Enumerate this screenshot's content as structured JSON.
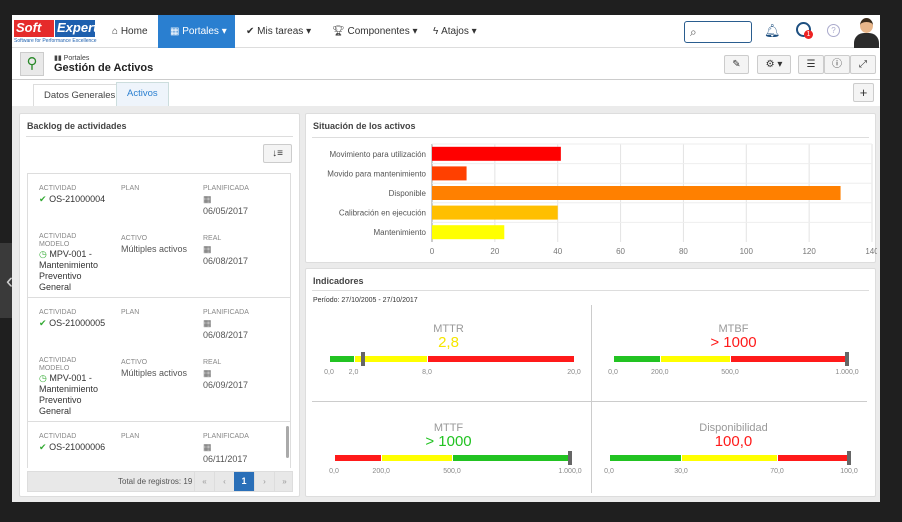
{
  "nav": {
    "logo_soft": "Soft",
    "logo_expert": "Expert",
    "logo_tagline": "Software for Performance Excellence",
    "items": [
      {
        "label": "Home",
        "icon": "home-icon"
      },
      {
        "label": "Portales",
        "icon": "grid-icon",
        "active": true
      },
      {
        "label": "Mis tareas",
        "icon": "check-icon"
      },
      {
        "label": "Componentes",
        "icon": "trophy-icon"
      },
      {
        "label": "Atajos",
        "icon": "bolt-icon"
      }
    ],
    "notification_badge": "1"
  },
  "header": {
    "breadcrumb": "Portales",
    "title": "Gestión de Activos"
  },
  "tabs": [
    {
      "label": "Datos Generales"
    },
    {
      "label": "Activos",
      "active": true
    }
  ],
  "backlog": {
    "title": "Backlog de actividades",
    "labels": {
      "actividad": "Actividad",
      "plan": "Plan",
      "planificada": "Planificada",
      "actividad_modelo": "Actividad modelo",
      "activo": "Activo",
      "real": "Real"
    },
    "items": [
      {
        "actividad": "OS-21000004",
        "planificada": "06/05/2017",
        "modelo": "MPV-001 - Mantenimiento Preventivo General",
        "activo": "Múltiples activos",
        "real": "06/08/2017"
      },
      {
        "actividad": "OS-21000005",
        "planificada": "06/08/2017",
        "modelo": "MPV-001 - Mantenimiento Preventivo General",
        "activo": "Múltiples activos",
        "real": "06/09/2017"
      },
      {
        "actividad": "OS-21000006",
        "planificada": "06/11/2017"
      }
    ],
    "total": "Total de registros: 19",
    "page": "1",
    "first": "«",
    "prev": "‹",
    "next": "›",
    "last": "»"
  },
  "chart_data": {
    "type": "bar",
    "orientation": "horizontal",
    "title": "Situación de los activos",
    "categories": [
      "Movimiento para utilización",
      "Movido para mantenimiento",
      "Disponible",
      "Calibración en ejecución",
      "Mantenimiento"
    ],
    "values": [
      41,
      11,
      130,
      40,
      23
    ],
    "colors": [
      "#ff0000",
      "#ff4000",
      "#ff8000",
      "#ffbf00",
      "#ffff00"
    ],
    "xlim": [
      0,
      140
    ],
    "xticks": [
      0,
      20,
      40,
      60,
      80,
      100,
      120,
      140
    ],
    "grid": true
  },
  "indicadores": {
    "title": "Indicadores",
    "periodo": "Período: 27/10/2005 - 27/10/2017",
    "gauges": [
      {
        "name": "MTTR",
        "value_text": "2,8",
        "value": 2.8,
        "value_color": "#f5e600",
        "max": 20,
        "segments": [
          {
            "to": 2,
            "color": "#22c322"
          },
          {
            "to": 8,
            "color": "#ffff00"
          },
          {
            "to": 20,
            "color": "#ff1a1a"
          }
        ],
        "ticks": [
          "0,0",
          "2,0",
          "8,0",
          "20,0"
        ],
        "tick_values": [
          0,
          2,
          8,
          20
        ]
      },
      {
        "name": "MTBF",
        "value_text": "> 1000",
        "value": 1000,
        "value_color": "#ff1a1a",
        "max": 1000,
        "segments": [
          {
            "to": 200,
            "color": "#22c322"
          },
          {
            "to": 500,
            "color": "#ffff00"
          },
          {
            "to": 1000,
            "color": "#ff1a1a"
          }
        ],
        "ticks": [
          "0,0",
          "200,0",
          "500,0",
          "1.000,0"
        ],
        "tick_values": [
          0,
          200,
          500,
          1000
        ]
      },
      {
        "name": "MTTF",
        "value_text": "> 1000",
        "value": 1000,
        "value_color": "#22c322",
        "max": 1000,
        "segments": [
          {
            "to": 200,
            "color": "#ff1a1a"
          },
          {
            "to": 500,
            "color": "#ffff00"
          },
          {
            "to": 1000,
            "color": "#22c322"
          }
        ],
        "ticks": [
          "0,0",
          "200,0",
          "500,0",
          "1.000,0"
        ],
        "tick_values": [
          0,
          200,
          500,
          1000
        ]
      },
      {
        "name": "Disponibilidad",
        "value_text": "100,0",
        "value": 100,
        "value_color": "#ff1a1a",
        "max": 100,
        "segments": [
          {
            "to": 30,
            "color": "#22c322"
          },
          {
            "to": 70,
            "color": "#ffff00"
          },
          {
            "to": 100,
            "color": "#ff1a1a"
          }
        ],
        "ticks": [
          "0,0",
          "30,0",
          "70,0",
          "100,0"
        ],
        "tick_values": [
          0,
          30,
          70,
          100
        ]
      }
    ]
  }
}
